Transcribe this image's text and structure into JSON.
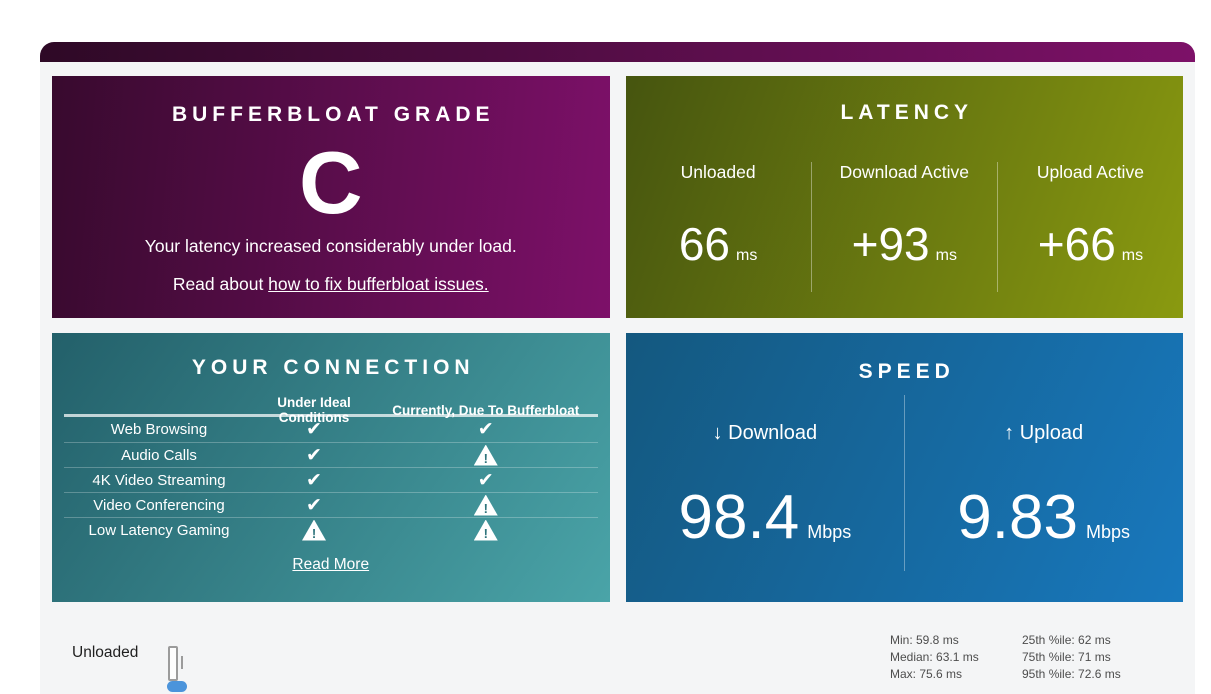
{
  "theme": {
    "topbar_start": "#2e0926",
    "topbar_end": "#7d1168",
    "grade_start": "#380a2e",
    "grade_end": "#7d1069",
    "latency_start": "#46550f",
    "latency_end": "#8a9a10",
    "connection_start": "#23606a",
    "connection_end": "#4aa4a8",
    "speed_start": "#14587f",
    "speed_end": "#1878bd",
    "accent_blue": "#4b94db"
  },
  "grade_card": {
    "title": "BUFFERBLOAT GRADE",
    "grade": "C",
    "description": "Your latency increased considerably under load.",
    "read_about_prefix": "Read about ",
    "link_text": "how to fix bufferbloat issues."
  },
  "latency_card": {
    "title": "LATENCY",
    "columns": [
      {
        "label": "Unloaded",
        "value": "66",
        "unit": "ms"
      },
      {
        "label": "Download Active",
        "value": "+93",
        "unit": "ms"
      },
      {
        "label": "Upload Active",
        "value": "+66",
        "unit": "ms"
      }
    ]
  },
  "connection_card": {
    "title": "YOUR CONNECTION",
    "col_headers": [
      "Under Ideal Conditions",
      "Currently, Due To Bufferbloat"
    ],
    "rows": [
      {
        "label": "Web Browsing",
        "ideal": "check",
        "current": "check"
      },
      {
        "label": "Audio Calls",
        "ideal": "check",
        "current": "warn"
      },
      {
        "label": "4K Video Streaming",
        "ideal": "check",
        "current": "check"
      },
      {
        "label": "Video Conferencing",
        "ideal": "check",
        "current": "warn"
      },
      {
        "label": "Low Latency Gaming",
        "ideal": "warn",
        "current": "warn"
      }
    ],
    "read_more": "Read More"
  },
  "speed_card": {
    "title": "SPEED",
    "columns": [
      {
        "arrow": "↓",
        "label": "Download",
        "value": "98.4",
        "unit": "Mbps"
      },
      {
        "arrow": "↑",
        "label": "Upload",
        "value": "9.83",
        "unit": "Mbps"
      }
    ]
  },
  "latency_detail": {
    "row_label": "Unloaded",
    "stats_left": [
      "Min: 59.8 ms",
      "Median: 63.1 ms",
      "Max: 75.6 ms"
    ],
    "stats_right": [
      "25th %ile: 62 ms",
      "75th %ile: 71 ms",
      "95th %ile: 72.6 ms"
    ]
  }
}
